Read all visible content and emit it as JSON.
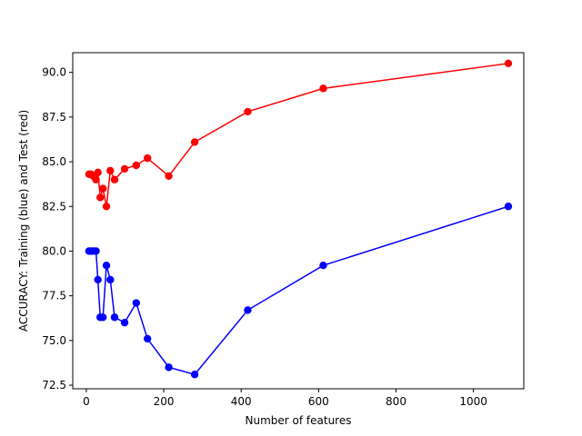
{
  "chart_data": {
    "type": "line",
    "title": "",
    "xlabel": "Number of features",
    "ylabel": "ACCURACY: Training (blue) and Test (red)",
    "xlim": [
      -35,
      1130
    ],
    "ylim": [
      72.3,
      91.1
    ],
    "xticks": [
      0,
      200,
      400,
      600,
      800,
      1000
    ],
    "yticks": [
      72.5,
      75.0,
      77.5,
      80.0,
      82.5,
      85.0,
      87.5,
      90.0
    ],
    "ytick_labels": [
      "72.5",
      "75.0",
      "77.5",
      "80.0",
      "82.5",
      "85.0",
      "87.5",
      "90.0"
    ],
    "grid": false,
    "series": [
      {
        "color": "#ff0000",
        "x": [
          7,
          12,
          18,
          25,
          30,
          36,
          43,
          52,
          62,
          73,
          99,
          129,
          158,
          213,
          280,
          417,
          612,
          1090
        ],
        "y": [
          84.3,
          84.3,
          84.2,
          84.0,
          84.4,
          83.0,
          83.5,
          82.5,
          84.5,
          84.0,
          84.6,
          84.8,
          85.2,
          84.2,
          86.1,
          87.8,
          89.1,
          90.5
        ]
      },
      {
        "color": "#0000ff",
        "x": [
          7,
          12,
          18,
          25,
          30,
          36,
          43,
          52,
          62,
          73,
          99,
          129,
          158,
          213,
          280,
          417,
          612,
          1090
        ],
        "y": [
          80.0,
          80.0,
          80.0,
          80.0,
          78.4,
          76.3,
          76.3,
          79.2,
          78.4,
          76.3,
          76.0,
          77.1,
          75.1,
          73.5,
          73.1,
          76.7,
          79.2,
          82.5
        ]
      }
    ]
  }
}
